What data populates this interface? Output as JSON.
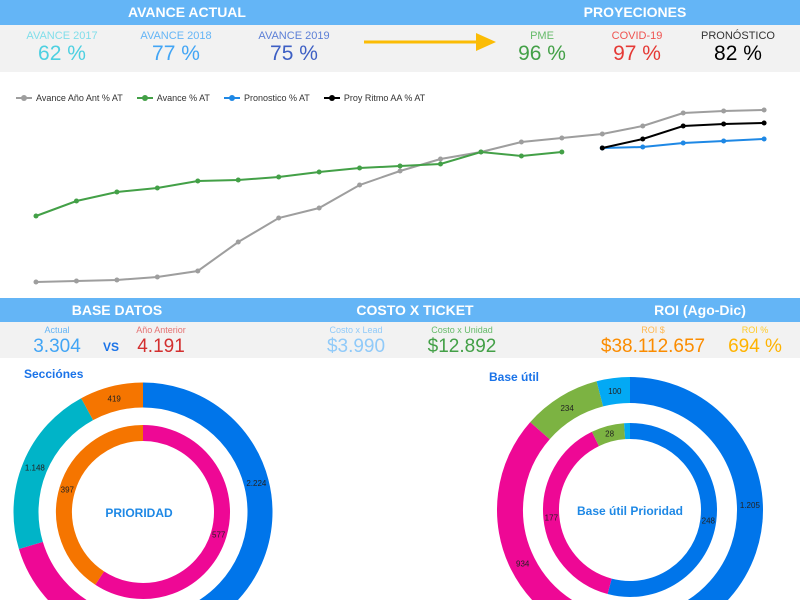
{
  "header1": {
    "left": "AVANCE ACTUAL",
    "right": "PROYECIONES"
  },
  "kpis1": [
    {
      "label": "AVANCE 2017",
      "value": "62 %",
      "lc": "#80deea",
      "vc": "#4dd0e1"
    },
    {
      "label": "AVANCE 2018",
      "value": "77 %",
      "lc": "#64b5f6",
      "vc": "#42a5f5"
    },
    {
      "label": "AVANCE 2019",
      "value": "75 %",
      "lc": "#5c7fd6",
      "vc": "#3d5fc4"
    },
    {
      "label": "PME",
      "value": "96 %",
      "lc": "#66bb6a",
      "vc": "#43a047"
    },
    {
      "label": "COVID-19",
      "value": "97 %",
      "lc": "#ef5350",
      "vc": "#e53935"
    },
    {
      "label": "PRONÓSTICO",
      "value": "82 %",
      "lc": "#333333",
      "vc": "#000000"
    }
  ],
  "arrow_color": "#fbbc05",
  "chart_data": {
    "type": "line",
    "legend_position": "top-left",
    "grid": false,
    "series": [
      {
        "name": "Avance Año Ant % AT",
        "color": "#9e9e9e",
        "start": 0,
        "values": [
          9,
          9.5,
          10,
          11.5,
          14.5,
          29,
          41,
          46,
          57.5,
          64.5,
          70.5,
          74,
          79,
          81,
          83,
          87,
          93.5,
          94.5,
          95
        ]
      },
      {
        "name": "Avance % AT",
        "color": "#43a047",
        "start": 0,
        "values": [
          42,
          49.5,
          54,
          56,
          59.5,
          60,
          61.5,
          64,
          66,
          67,
          68,
          74,
          72,
          74
        ]
      },
      {
        "name": "Pronostico % AT",
        "color": "#1e88e5",
        "start": 14,
        "values": [
          76,
          76.5,
          78.5,
          79.5,
          80.5
        ]
      },
      {
        "name": "Proy Ritmo AA % AT",
        "color": "#000000",
        "start": 14,
        "values": [
          76,
          80.5,
          87,
          88,
          88.5
        ]
      }
    ]
  },
  "header2": {
    "a": "BASE DATOS",
    "b": "COSTO X TICKET",
    "c": "ROI (Ago-Dic)"
  },
  "kpis2": [
    {
      "label": "Actual",
      "value": "3.304",
      "lc": "#64b5f6",
      "vc": "#42a5f5"
    },
    {
      "label": "Año Anterior",
      "value": "4.191",
      "lc": "#e57373",
      "vc": "#d32f2f"
    },
    {
      "label": "Costo x Lead",
      "value": "$3.990",
      "lc": "#90caf9",
      "vc": "#90caf9"
    },
    {
      "label": "Costo x Unidad",
      "value": "$12.892",
      "lc": "#66bb6a",
      "vc": "#43a047"
    },
    {
      "label": "ROI $",
      "value": "$38.112.657",
      "lc": "#ffb74d",
      "vc": "#fb8c00"
    },
    {
      "label": "ROI %",
      "value": "694 %",
      "lc": "#ffca28",
      "vc": "#ffb300"
    }
  ],
  "vs": "VS",
  "donuts": [
    {
      "title": "Secciónes",
      "center": "PRIORIDAD",
      "outer": [
        {
          "value": 2224,
          "label": "2.224",
          "color": "#0075ea"
        },
        {
          "value": 1500,
          "label": "",
          "color": "#ee0895"
        },
        {
          "value": 1148,
          "label": "1.148",
          "color": "#00b4c8"
        },
        {
          "value": 419,
          "label": "419",
          "color": "#f57500"
        }
      ],
      "inner": [
        {
          "value": 577,
          "label": "577",
          "color": "#ee0895"
        },
        {
          "value": 397,
          "label": "397",
          "color": "#f57500"
        }
      ]
    },
    {
      "title": "Base útil",
      "center": "Base útil Prioridad",
      "outer": [
        {
          "value": 1205,
          "label": "1.205",
          "color": "#0075ea"
        },
        {
          "value": 934,
          "label": "934",
          "color": "#ee0895"
        },
        {
          "value": 234,
          "label": "234",
          "color": "#7cb342"
        },
        {
          "value": 100,
          "label": "100",
          "color": "#03a9f4"
        }
      ],
      "inner": [
        {
          "value": 248,
          "label": "248",
          "color": "#0075ea"
        },
        {
          "value": 177,
          "label": "177",
          "color": "#ee0895"
        },
        {
          "value": 28,
          "label": "28",
          "color": "#7cb342"
        },
        {
          "value": 5,
          "label": "",
          "color": "#03a9f4"
        }
      ]
    }
  ]
}
